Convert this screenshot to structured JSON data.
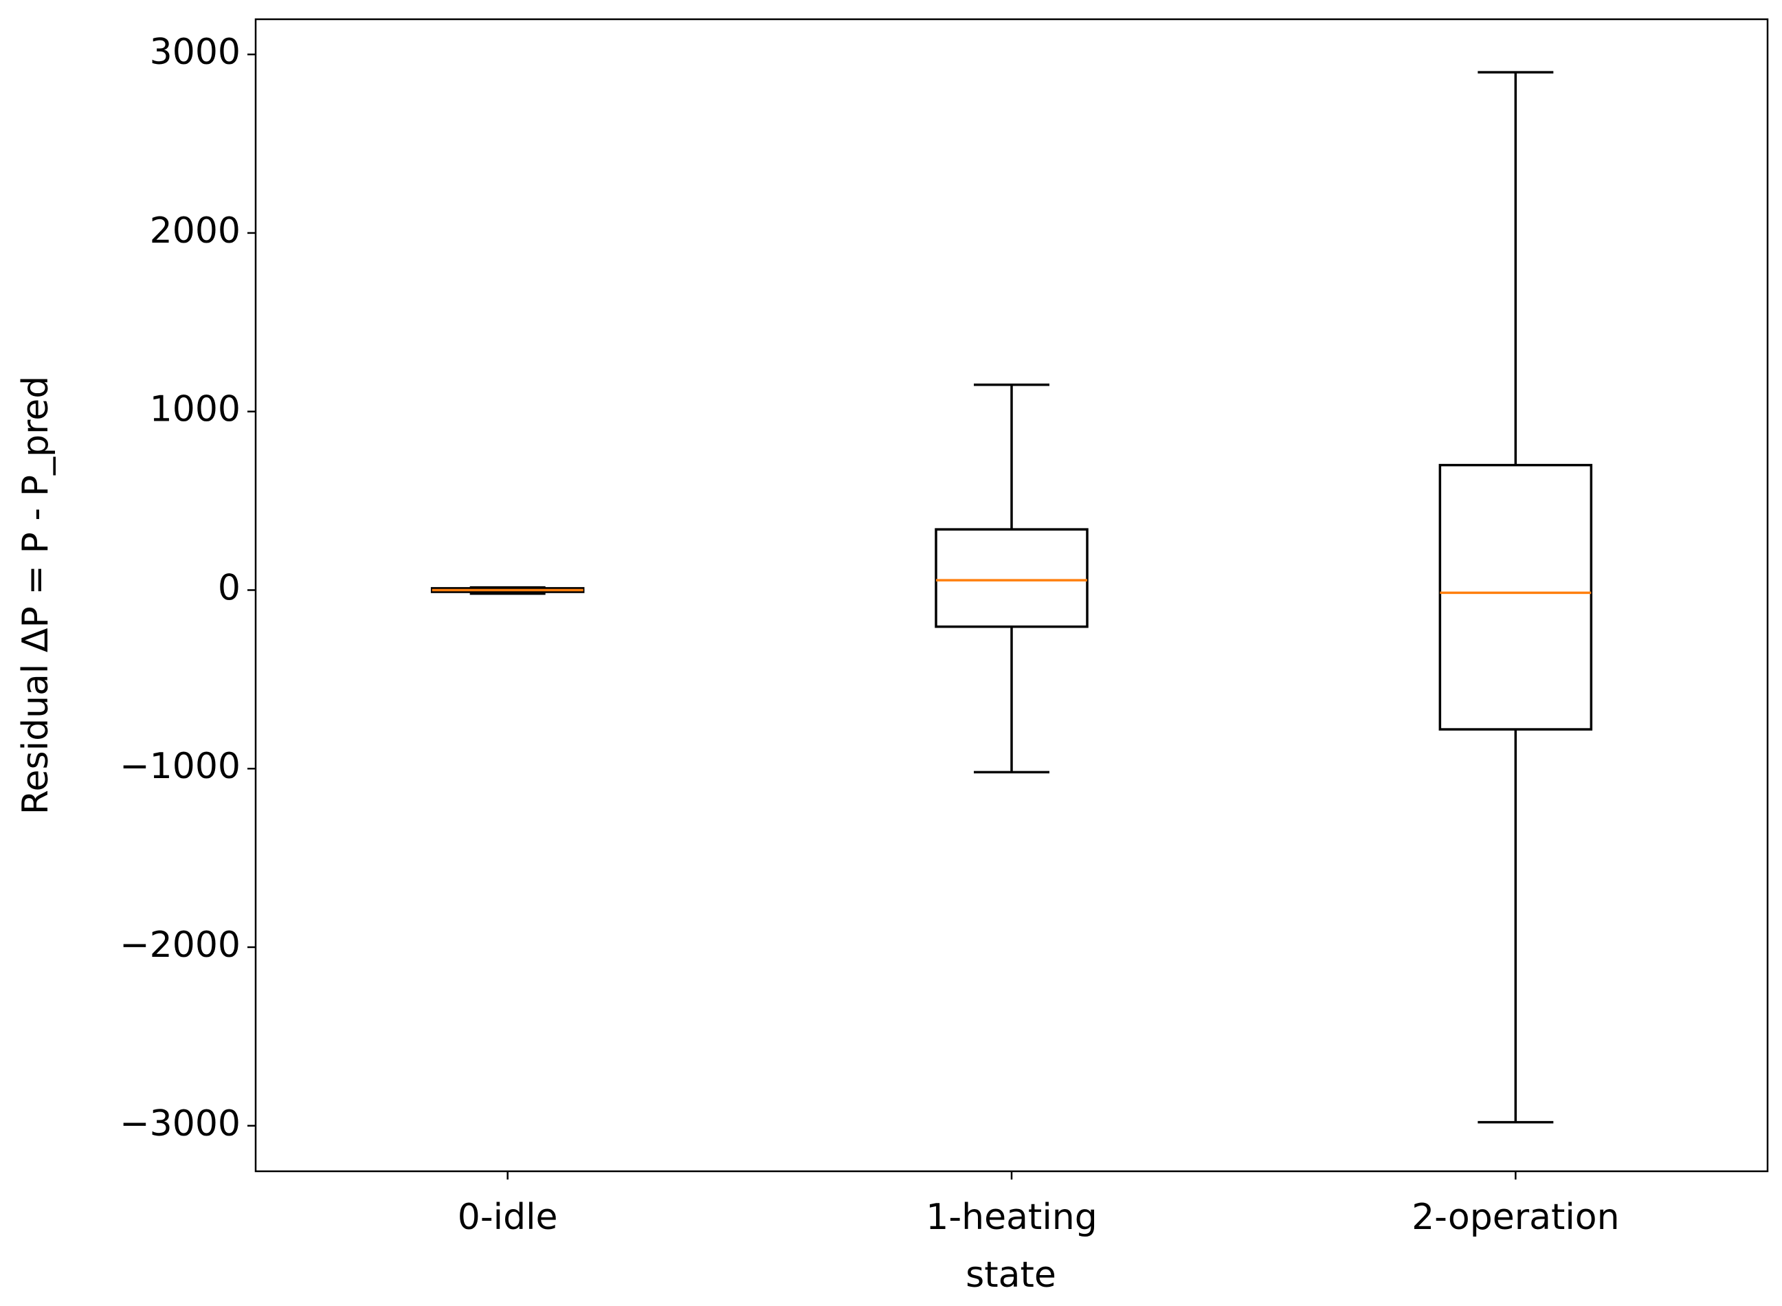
{
  "chart_data": {
    "type": "box",
    "xlabel": "state",
    "ylabel": "Residual ΔP = P - P_pred",
    "categories": [
      "0-idle",
      "1-heating",
      "2-operation"
    ],
    "box_color": "#000000",
    "median_color": "#ff7f0e",
    "whisker_low": [
      -20,
      -1020,
      -2980
    ],
    "q1": [
      -10,
      -205,
      -780
    ],
    "median": [
      0,
      55,
      -15
    ],
    "q3": [
      10,
      340,
      700
    ],
    "whisker_high": [
      15,
      1150,
      2900
    ],
    "ylim": [
      -3255,
      3197
    ],
    "yticks": [
      {
        "value": -3000,
        "label": "−3000"
      },
      {
        "value": -2000,
        "label": "−2000"
      },
      {
        "value": -1000,
        "label": "−1000"
      },
      0,
      1000,
      2000,
      3000
    ],
    "grid": false
  }
}
